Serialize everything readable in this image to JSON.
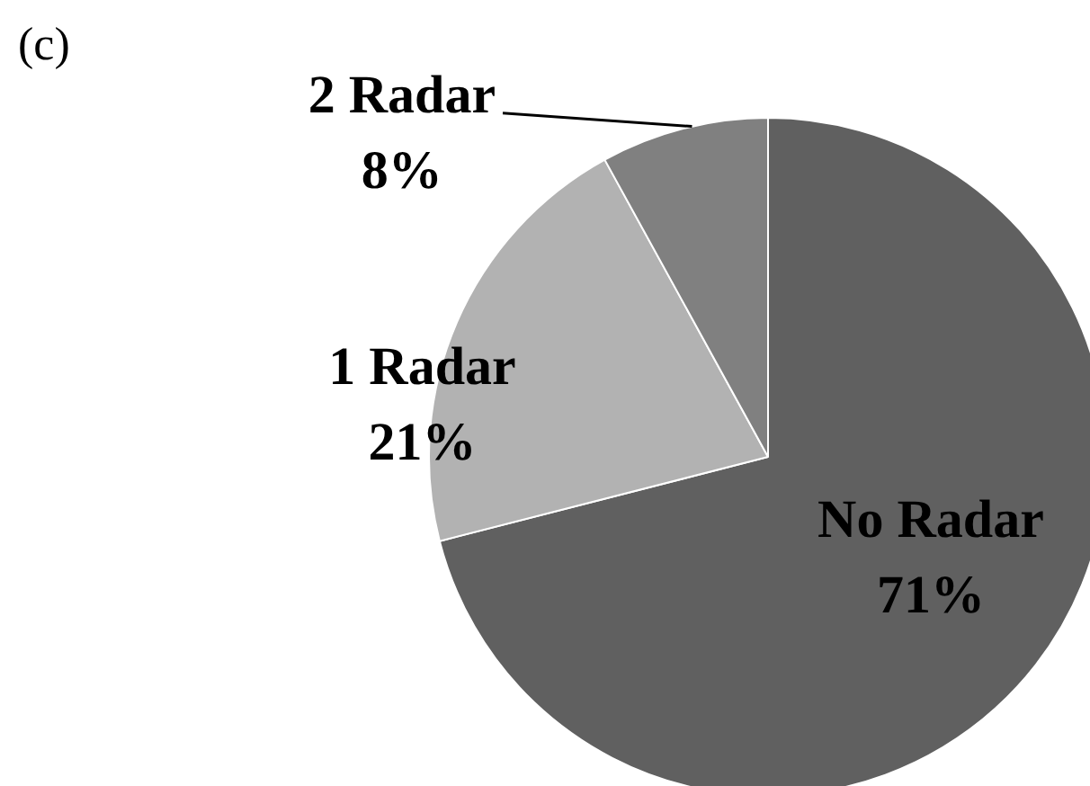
{
  "chart_data": {
    "type": "pie",
    "title": "(c)",
    "categories": [
      "No Radar",
      "1 Radar",
      "2 Radar"
    ],
    "values": [
      71,
      21,
      8
    ],
    "colors": [
      "#606060",
      "#b2b2b2",
      "#808080"
    ],
    "value_labels": [
      "71%",
      "21%",
      "8%"
    ]
  }
}
